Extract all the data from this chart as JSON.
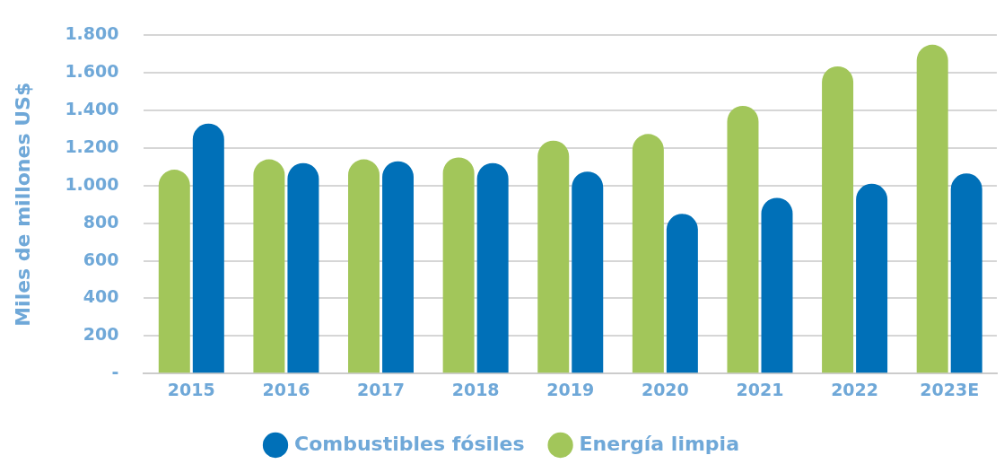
{
  "chart_data": {
    "type": "bar",
    "ylabel": "Miles de millones US$",
    "categories": [
      "2015",
      "2016",
      "2017",
      "2018",
      "2019",
      "2020",
      "2021",
      "2022",
      "2023E"
    ],
    "series": [
      {
        "name": "Energía limpia",
        "color": "#a2c65a",
        "values": [
          1085,
          1140,
          1140,
          1150,
          1240,
          1275,
          1425,
          1635,
          1750
        ]
      },
      {
        "name": "Combustibles fósiles",
        "color": "#0070b8",
        "values": [
          1330,
          1120,
          1130,
          1120,
          1075,
          850,
          935,
          1010,
          1065
        ]
      }
    ],
    "ylim": [
      0,
      1800
    ],
    "yticks": [
      {
        "value": 0,
        "label": "-"
      },
      {
        "value": 200,
        "label": "200"
      },
      {
        "value": 400,
        "label": "400"
      },
      {
        "value": 600,
        "label": "600"
      },
      {
        "value": 800,
        "label": "800"
      },
      {
        "value": 1000,
        "label": "1.000"
      },
      {
        "value": 1200,
        "label": "1.200"
      },
      {
        "value": 1400,
        "label": "1.400"
      },
      {
        "value": 1600,
        "label": "1.600"
      },
      {
        "value": 1800,
        "label": "1.800"
      }
    ],
    "grid": "y",
    "legend": "bottom"
  }
}
